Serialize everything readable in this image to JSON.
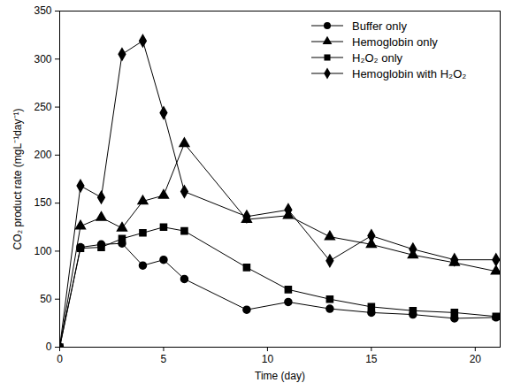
{
  "chart_data": {
    "type": "line",
    "x_label": "Time (day)",
    "y_label": "CO₂ product rate (mgL⁻¹day⁻¹)",
    "x": [
      0,
      1,
      2,
      3,
      4,
      5,
      6,
      9,
      11,
      13,
      15,
      17,
      19,
      21
    ],
    "series": [
      {
        "name": "Buffer only",
        "color": "#000000",
        "marker": "circle",
        "values": [
          0,
          104,
          107,
          108,
          85,
          91,
          71,
          39,
          47,
          40,
          36,
          34,
          30,
          31
        ]
      },
      {
        "name": "Hemoglobin only",
        "color": "#000000",
        "marker": "triangle",
        "values": [
          0,
          126,
          135,
          124,
          152,
          158,
          212,
          133,
          137,
          115,
          107,
          96,
          88,
          79
        ]
      },
      {
        "name": "H₂O₂ only",
        "color": "#000000",
        "marker": "square",
        "values": [
          0,
          103,
          104,
          113,
          119,
          125,
          121,
          83,
          60,
          50,
          42,
          38,
          36,
          32
        ]
      },
      {
        "name": "Hemoglobin with H₂O₂",
        "color": "#000000",
        "marker": "diamond",
        "values": [
          0,
          168,
          156,
          305,
          319,
          244,
          162,
          136,
          143,
          90,
          116,
          102,
          91,
          91
        ]
      }
    ],
    "xlim": [
      0,
      21.2
    ],
    "xticks": [
      0,
      5,
      10,
      15,
      20
    ],
    "ylim": [
      0,
      350
    ],
    "yticks": [
      0,
      50,
      100,
      150,
      200,
      250,
      300,
      350
    ],
    "legend": "upper right",
    "grid": false
  }
}
